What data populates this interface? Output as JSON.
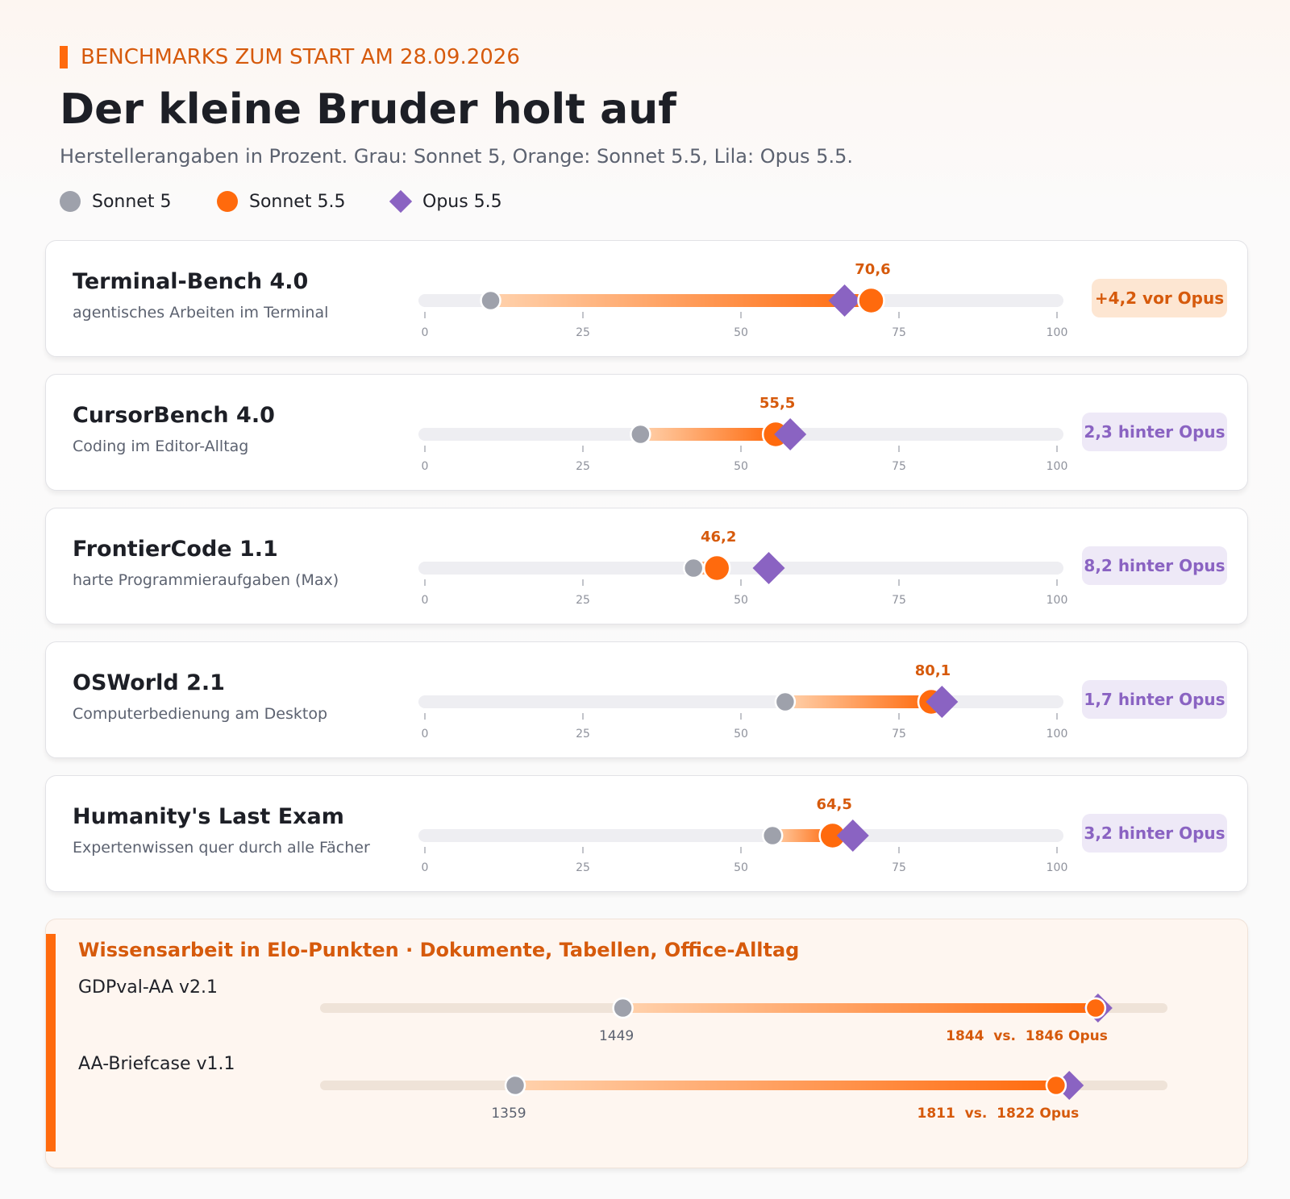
{
  "header": {
    "eyebrow": "BENCHMARKS ZUM START AM 28.09.2026",
    "title": "Der kleine Bruder holt auf",
    "subtitle": "Herstellerangaben in Prozent. Grau: Sonnet 5, Orange: Sonnet 5.5, Lila: Opus 5.5."
  },
  "legend": [
    {
      "label": "Sonnet 5",
      "color": "#9ea1ab",
      "shape": "circle"
    },
    {
      "label": "Sonnet 5.5",
      "color": "#ff6a0d",
      "shape": "circle"
    },
    {
      "label": "Opus 5.5",
      "color": "#8a63c2",
      "shape": "diamond"
    }
  ],
  "colors": {
    "sonnet5": "#9ea1ab",
    "sonnet55": "#ff6a0d",
    "opus55": "#8a63c2",
    "value_label": "#d65a0c",
    "track": "#eeeef2"
  },
  "chart_data": [
    {
      "type": "dot-range",
      "xlim": [
        0,
        100
      ],
      "ticks": [
        0,
        25,
        50,
        75,
        100
      ],
      "series_names": [
        "Sonnet 5",
        "Sonnet 5.5",
        "Opus 5.5"
      ],
      "rows": [
        {
          "name": "Terminal-Bench 4.0",
          "desc": "agentisches Arbeiten im Terminal",
          "sonnet5": 10.4,
          "sonnet55": 70.6,
          "opus55": 66.4,
          "value_label": "70,6",
          "badge": "+4,2 vor Opus",
          "badge_type": "ahead"
        },
        {
          "name": "CursorBench 4.0",
          "desc": "Coding im Editor-Alltag",
          "sonnet5": 34.1,
          "sonnet55": 55.5,
          "opus55": 57.8,
          "value_label": "55,5",
          "badge": "2,3 hinter Opus",
          "badge_type": "behind"
        },
        {
          "name": "FrontierCode 1.1",
          "desc": "harte Programmieraufgaben (Max)",
          "sonnet5": 42.5,
          "sonnet55": 46.2,
          "opus55": 54.4,
          "value_label": "46,2",
          "badge": "8,2 hinter Opus",
          "badge_type": "behind"
        },
        {
          "name": "OSWorld 2.1",
          "desc": "Computerbedienung am Desktop",
          "sonnet5": 57.0,
          "sonnet55": 80.1,
          "opus55": 81.8,
          "value_label": "80,1",
          "badge": "1,7 hinter Opus",
          "badge_type": "behind"
        },
        {
          "name": "Humanity's Last Exam",
          "desc": "Expertenwissen quer durch alle Fächer",
          "sonnet5": 55.0,
          "sonnet55": 64.5,
          "opus55": 67.7,
          "value_label": "64,5",
          "badge": "3,2 hinter Opus",
          "badge_type": "behind"
        }
      ]
    },
    {
      "type": "dot-range",
      "title": "Wissensarbeit in Elo-Punkten  ·  Dokumente, Tabellen, Office-Alltag",
      "xlim": [
        1200,
        1900
      ],
      "rows": [
        {
          "name": "GDPval-AA v2.1",
          "sonnet5": 1449,
          "sonnet55": 1844,
          "opus55": 1846,
          "low_label": "1449",
          "high_label": "1844  vs.  1846 Opus"
        },
        {
          "name": "AA-Briefcase v1.1",
          "sonnet5": 1359,
          "sonnet55": 1811,
          "opus55": 1822,
          "low_label": "1359",
          "high_label": "1811  vs.  1822 Opus"
        }
      ]
    }
  ]
}
